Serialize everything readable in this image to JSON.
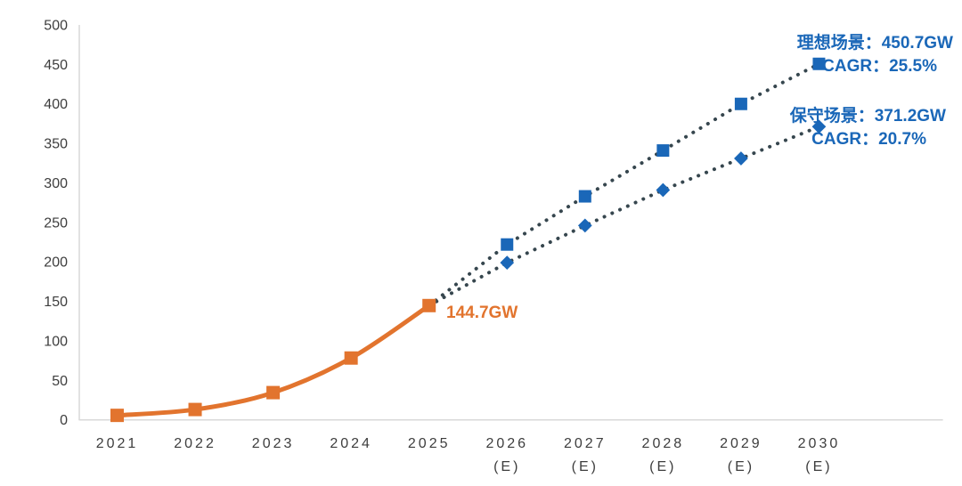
{
  "chart_data": {
    "type": "line",
    "title": "",
    "xlabel": "",
    "ylabel": "",
    "ylim": [
      0,
      500
    ],
    "y_tick_step": 50,
    "y_ticks": [
      0,
      50,
      100,
      150,
      200,
      250,
      300,
      350,
      400,
      450,
      500
    ],
    "grid": false,
    "categories": [
      "2021",
      "2022",
      "2023",
      "2024",
      "2025",
      "2026",
      "2027",
      "2028",
      "2029",
      "2030"
    ],
    "sub_labels": [
      "",
      "",
      "",
      "",
      "",
      "(E)",
      "(E)",
      "(E)",
      "(E)",
      "(E)"
    ],
    "series": [
      {
        "name": "",
        "id": "historical",
        "line": "solid",
        "smooth": true,
        "start_index": 0,
        "values": [
          5.7,
          13.1,
          34.5,
          78.3,
          144.7
        ],
        "line_color_key": "orange",
        "marker": "square",
        "marker_color_key": "orange",
        "marker_size": 15,
        "skip_first_marker": false
      },
      {
        "name": "理想场景",
        "id": "ideal",
        "line": "dotted",
        "smooth": false,
        "start_index": 4,
        "values": [
          144.7,
          222,
          283,
          341,
          400,
          450.7
        ],
        "line_color_key": "dot",
        "marker": "square",
        "marker_color_key": "blue",
        "marker_size": 14,
        "skip_first_marker": true
      },
      {
        "name": "保守场景",
        "id": "conservative",
        "line": "dotted",
        "smooth": false,
        "start_index": 4,
        "values": [
          144.7,
          199,
          246,
          291,
          331,
          371.2
        ],
        "line_color_key": "dot",
        "marker": "diamond",
        "marker_color_key": "blue",
        "marker_size": 15,
        "skip_first_marker": true
      }
    ],
    "annotations": {
      "peak_label": "144.7GW",
      "ideal_title": "理想场景：450.7GW",
      "ideal_cagr": "CAGR：25.5%",
      "conservative_title": "保守场景：371.2GW",
      "conservative_cagr": "CAGR：20.7%"
    },
    "colors": {
      "orange": "#E2742E",
      "blue": "#1A67B8",
      "dot": "#36464E",
      "axis": "#D9D9D9",
      "tick_text": "#3D3D3D"
    },
    "legend_position": "none"
  }
}
